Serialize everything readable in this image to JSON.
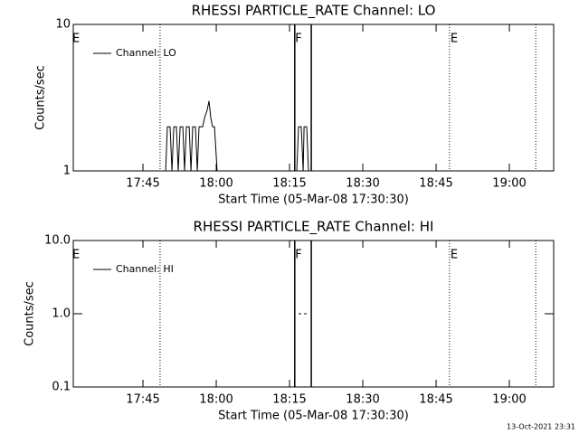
{
  "chart_data": [
    {
      "type": "line",
      "title": "RHESSI PARTICLE_RATE Channel: LO",
      "y_label": "Counts/sec",
      "x_label": "Start Time (05-Mar-08 17:30:30)",
      "yscale": "log",
      "ylim": [
        1,
        10
      ],
      "yticks": [
        1,
        10
      ],
      "xlim": [
        "17:30:44",
        "19:09:04"
      ],
      "xticks": [
        "17:45",
        "18:00",
        "18:15",
        "18:30",
        "18:45",
        "19:00"
      ],
      "legend": "upper left",
      "flags": [
        {
          "x": "17:31:18",
          "label": "E"
        },
        {
          "x": "18:16:51",
          "label": "F"
        },
        {
          "x": "18:48:42",
          "label": "E"
        }
      ],
      "vlines": [
        {
          "x": "17:48:30",
          "style": "dotted"
        },
        {
          "x": "18:16:04",
          "style": "solid"
        },
        {
          "x": "18:19:27",
          "style": "solid"
        },
        {
          "x": "18:47:45",
          "style": "dotted"
        },
        {
          "x": "19:05:24",
          "style": "dotted"
        }
      ],
      "series": [
        {
          "name": "Channel: LO",
          "color": "#000000",
          "x": [
            "17:49:38",
            "17:50:00",
            "17:50:33",
            "17:50:56",
            "17:51:18",
            "17:51:51",
            "17:52:13",
            "17:52:36",
            "17:53:09",
            "17:53:31",
            "17:53:53",
            "17:54:27",
            "17:54:49",
            "17:55:11",
            "17:55:44",
            "17:56:07",
            "17:56:29",
            "17:57:13",
            "17:57:36",
            "17:58:09",
            "17:58:31",
            "17:58:53",
            "17:59:15",
            "17:59:38",
            "18:00:11",
            "18:08:00",
            "18:16:29",
            "18:16:51",
            "18:17:24",
            "18:17:47",
            "18:17:58",
            "18:18:31",
            "18:18:53"
          ],
          "values": [
            1,
            2,
            2,
            1,
            2,
            2,
            1,
            2,
            2,
            1,
            2,
            2,
            1,
            2,
            2,
            1,
            2,
            2,
            2.3,
            2.6,
            3,
            2.3,
            2,
            2,
            1,
            null,
            1,
            2,
            2,
            1,
            2,
            2,
            1
          ]
        }
      ]
    },
    {
      "type": "line",
      "title": "RHESSI PARTICLE_RATE Channel: HI",
      "y_label": "Counts/sec",
      "x_label": "Start Time (05-Mar-08 17:30:30)",
      "yscale": "log",
      "ylim": [
        0.1,
        10
      ],
      "yticks": [
        0.1,
        {
          "value": 1,
          "label": "1.0"
        },
        {
          "value": 10,
          "label": "10.0"
        }
      ],
      "xlim": [
        "17:30:44",
        "19:09:04"
      ],
      "xticks": [
        "17:45",
        "18:00",
        "18:15",
        "18:30",
        "18:45",
        "19:00"
      ],
      "legend": "upper left",
      "flags": [
        {
          "x": "17:31:18",
          "label": "E"
        },
        {
          "x": "18:16:51",
          "label": "F"
        },
        {
          "x": "18:48:42",
          "label": "E"
        }
      ],
      "vlines": [
        {
          "x": "17:48:30",
          "style": "dotted"
        },
        {
          "x": "18:16:04",
          "style": "solid"
        },
        {
          "x": "18:19:27",
          "style": "solid"
        },
        {
          "x": "18:47:45",
          "style": "dotted"
        },
        {
          "x": "19:05:24",
          "style": "dotted"
        }
      ],
      "series": [
        {
          "name": "Channel: HI",
          "color": "#000000",
          "x": [
            "18:16:51",
            "18:17:24",
            "18:17:40",
            "18:17:58",
            "18:18:31"
          ],
          "values": [
            1,
            1,
            null,
            1,
            1
          ]
        }
      ]
    }
  ],
  "footer": "13-Oct-2021 23:31"
}
